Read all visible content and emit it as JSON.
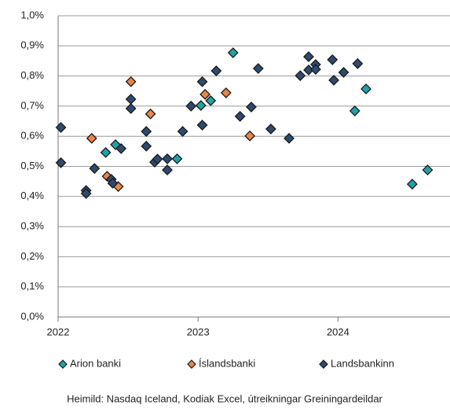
{
  "chart_data": {
    "type": "scatter",
    "source": "Heimild: Nasdaq Iceland, Kodiak Excel, útreikningar Greiningardeildar",
    "xlim": [
      2022,
      2024.8
    ],
    "xticks": [
      2022,
      2023,
      2024
    ],
    "ylim": [
      0,
      1.0
    ],
    "yticks": [
      {
        "value": 0,
        "label": "0,0%"
      },
      {
        "value": 0.1,
        "label": "0,1%"
      },
      {
        "value": 0.2,
        "label": "0,2%"
      },
      {
        "value": 0.3,
        "label": "0,3%"
      },
      {
        "value": 0.4,
        "label": "0,4%"
      },
      {
        "value": 0.5,
        "label": "0,5%"
      },
      {
        "value": 0.6,
        "label": "0,6%"
      },
      {
        "value": 0.7,
        "label": "0,7%"
      },
      {
        "value": 0.8,
        "label": "0,8%"
      },
      {
        "value": 0.9,
        "label": "0,9%"
      },
      {
        "value": 1.0,
        "label": "1,0%"
      }
    ],
    "grid": true,
    "legend": "bottom",
    "series": [
      {
        "name": "Arion banki",
        "color": "#1fa3a8",
        "x": [
          2022.34,
          2022.41,
          2022.85,
          2023.02,
          2023.09,
          2023.25,
          2024.12,
          2024.2,
          2024.53,
          2024.64
        ],
        "values": [
          0.546,
          0.572,
          0.525,
          0.702,
          0.718,
          0.877,
          0.684,
          0.757,
          0.441,
          0.488
        ]
      },
      {
        "name": "Íslandsbanki",
        "color": "#e8854a",
        "x": [
          2022.24,
          2022.35,
          2022.43,
          2022.52,
          2022.66,
          2023.05,
          2023.2,
          2023.37
        ],
        "values": [
          0.593,
          0.467,
          0.433,
          0.781,
          0.674,
          0.739,
          0.744,
          0.601
        ]
      },
      {
        "name": "Landsbankinn",
        "color": "#2e4a6e",
        "x": [
          2022.02,
          2022.02,
          2022.2,
          2022.2,
          2022.26,
          2022.38,
          2022.39,
          2022.45,
          2022.52,
          2022.52,
          2022.63,
          2022.63,
          2022.69,
          2022.71,
          2022.78,
          2022.78,
          2022.89,
          2022.95,
          2023.03,
          2023.03,
          2023.13,
          2023.3,
          2023.38,
          2023.43,
          2023.52,
          2023.65,
          2023.73,
          2023.79,
          2023.79,
          2023.84,
          2023.84,
          2023.97,
          2023.96,
          2024.04,
          2024.14
        ],
        "values": [
          0.629,
          0.512,
          0.42,
          0.41,
          0.493,
          0.457,
          0.444,
          0.559,
          0.692,
          0.723,
          0.616,
          0.567,
          0.514,
          0.524,
          0.488,
          0.525,
          0.616,
          0.7,
          0.781,
          0.637,
          0.817,
          0.666,
          0.697,
          0.825,
          0.624,
          0.593,
          0.801,
          0.864,
          0.82,
          0.838,
          0.822,
          0.786,
          0.854,
          0.812,
          0.841
        ]
      }
    ]
  }
}
